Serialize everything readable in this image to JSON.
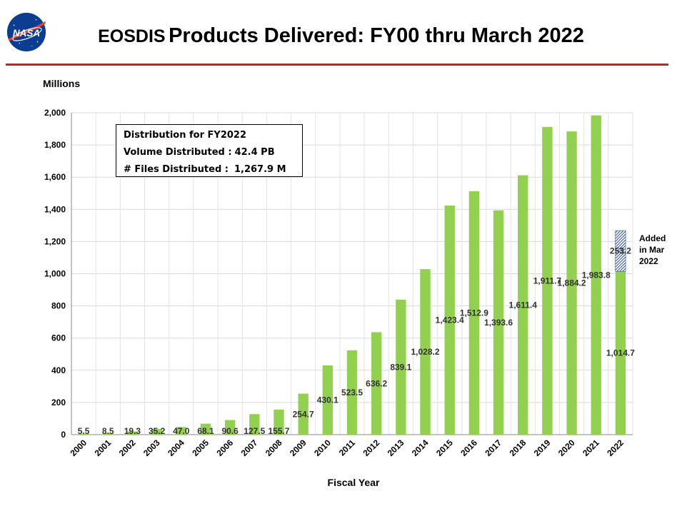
{
  "title": {
    "prefix": "EOSDIS",
    "main": "Products Delivered: FY00 thru March 2022"
  },
  "logo": {
    "text": "NASA",
    "icon": "nasa-meatball-logo"
  },
  "colors": {
    "bar": "#92d050",
    "hatch": "#2f4f9f",
    "rule": "#cc1f1f",
    "logo_blue": "#0b3d91",
    "logo_red": "#fc3d21"
  },
  "info_box": {
    "heading": "Distribution for FY2022",
    "volume_label": "Volume Distributed :",
    "volume_value": "42.4 PB",
    "files_label": "# Files Distributed :",
    "files_value": "1,267.9 M"
  },
  "annotation": "Added\nin Mar\n2022",
  "chart_data": {
    "type": "bar",
    "stacked": true,
    "units_label": "Millions",
    "xlabel": "Fiscal Year",
    "ylabel": "",
    "ylim": [
      0,
      2000
    ],
    "yticks": [
      0,
      200,
      400,
      600,
      800,
      1000,
      1200,
      1400,
      1600,
      1800,
      2000
    ],
    "ytick_labels": [
      "0",
      "200",
      "400",
      "600",
      "800",
      "1,000",
      "1,200",
      "1,400",
      "1,600",
      "1,800",
      "2,000"
    ],
    "grid": true,
    "categories": [
      "2000",
      "2001",
      "2002",
      "2003",
      "2004",
      "2005",
      "2006",
      "2007",
      "2008",
      "2009",
      "2010",
      "2011",
      "2012",
      "2013",
      "2014",
      "2015",
      "2016",
      "2017",
      "2018",
      "2019",
      "2020",
      "2021",
      "2022"
    ],
    "series": [
      {
        "values": [
          5.5,
          8.5,
          19.3,
          35.2,
          47.0,
          68.1,
          90.6,
          127.5,
          155.7,
          254.7,
          430.1,
          523.5,
          636.2,
          839.1,
          1028.2,
          1423.4,
          1512.9,
          1393.6,
          1611.4,
          1911.7,
          1884.2,
          1983.8,
          1014.7
        ],
        "labels": [
          "5.5",
          "8.5",
          "19.3",
          "35.2",
          "47.0",
          "68.1",
          "90.6",
          "127.5",
          "155.7",
          "254.7",
          "430.1",
          "523.5",
          "636.2",
          "839.1",
          "1,028.2",
          "1,423.4",
          "1,512.9",
          "1,393.6",
          "1,611.4",
          "1,911.7",
          "1,884.2",
          "1,983.8",
          "1,014.7"
        ]
      },
      {
        "values": [
          0,
          0,
          0,
          0,
          0,
          0,
          0,
          0,
          0,
          0,
          0,
          0,
          0,
          0,
          0,
          0,
          0,
          0,
          0,
          0,
          0,
          0,
          253.2
        ],
        "labels": [
          "",
          "",
          "",
          "",
          "",
          "",
          "",
          "",
          "",
          "",
          "",
          "",
          "",
          "",
          "",
          "",
          "",
          "",
          "",
          "",
          "",
          "",
          "253.2"
        ],
        "pattern": "hatched"
      }
    ]
  }
}
